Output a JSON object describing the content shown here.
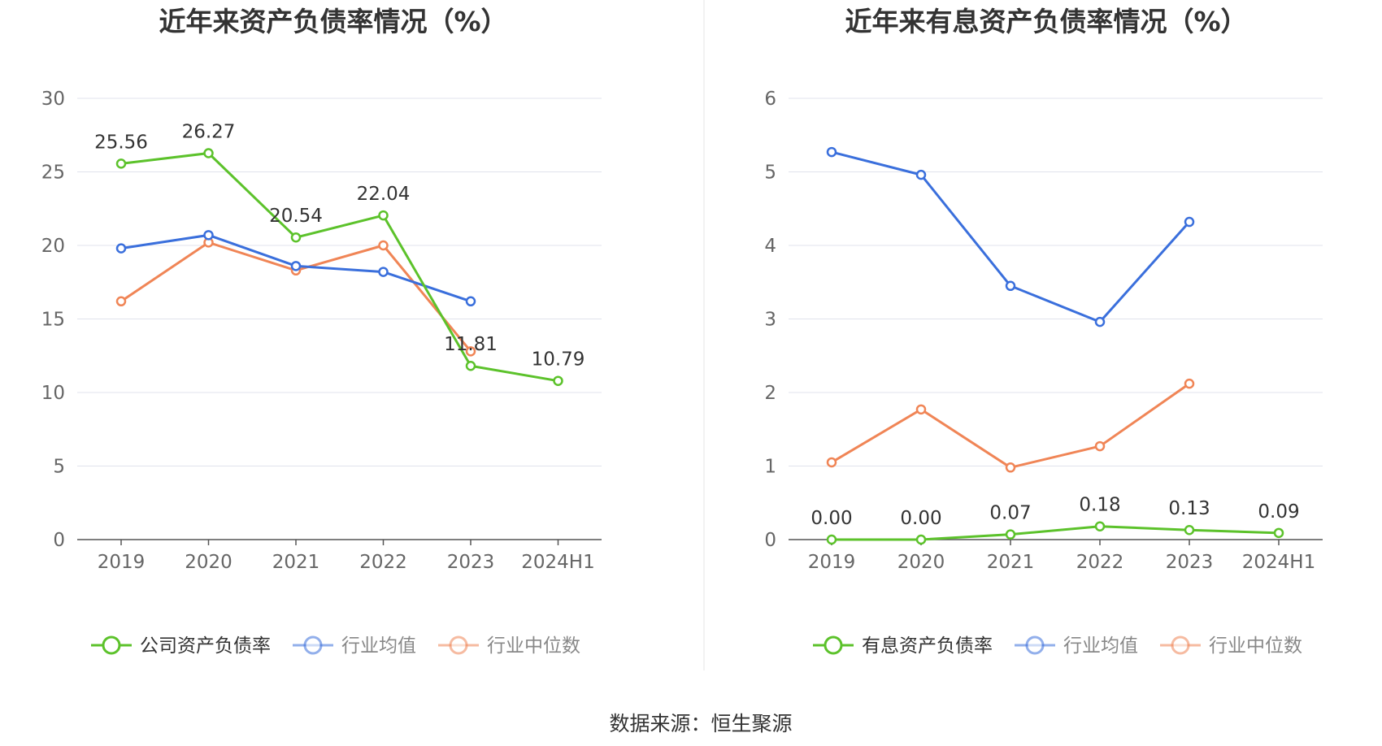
{
  "source": "数据来源：恒生聚源",
  "chart_data": [
    {
      "type": "line",
      "title": "近年来资产负债率情况（%）",
      "categories": [
        "2019",
        "2020",
        "2021",
        "2022",
        "2023",
        "2024H1"
      ],
      "ylim": [
        0,
        30
      ],
      "yticks": [
        0,
        5,
        10,
        15,
        20,
        25,
        30
      ],
      "grid": true,
      "legend_position": "bottom",
      "series": [
        {
          "name": "公司资产负债率",
          "color": "#5cc22b",
          "values": [
            25.56,
            26.27,
            20.54,
            22.04,
            11.81,
            10.79
          ],
          "labels": [
            "25.56",
            "26.27",
            "20.54",
            "22.04",
            "11.81",
            "10.79"
          ]
        },
        {
          "name": "行业均值",
          "color": "#3a6fdc",
          "values": [
            19.8,
            20.7,
            18.6,
            18.2,
            16.2,
            null
          ],
          "labels": null
        },
        {
          "name": "行业中位数",
          "color": "#f08556",
          "values": [
            16.2,
            20.2,
            18.3,
            20.0,
            12.8,
            null
          ],
          "labels": null
        }
      ]
    },
    {
      "type": "line",
      "title": "近年来有息资产负债率情况（%）",
      "categories": [
        "2019",
        "2020",
        "2021",
        "2022",
        "2023",
        "2024H1"
      ],
      "ylim": [
        0,
        6
      ],
      "yticks": [
        0,
        1,
        2,
        3,
        4,
        5,
        6
      ],
      "grid": true,
      "legend_position": "bottom",
      "series": [
        {
          "name": "有息资产负债率",
          "color": "#5cc22b",
          "values": [
            0.0,
            0.0,
            0.07,
            0.18,
            0.13,
            0.09
          ],
          "labels": [
            "0.00",
            "0.00",
            "0.07",
            "0.18",
            "0.13",
            "0.09"
          ]
        },
        {
          "name": "行业均值",
          "color": "#3a6fdc",
          "values": [
            5.27,
            4.96,
            3.45,
            2.96,
            4.32,
            null
          ],
          "labels": null
        },
        {
          "name": "行业中位数",
          "color": "#f08556",
          "values": [
            1.05,
            1.77,
            0.98,
            1.27,
            2.12,
            null
          ],
          "labels": null
        }
      ]
    }
  ]
}
